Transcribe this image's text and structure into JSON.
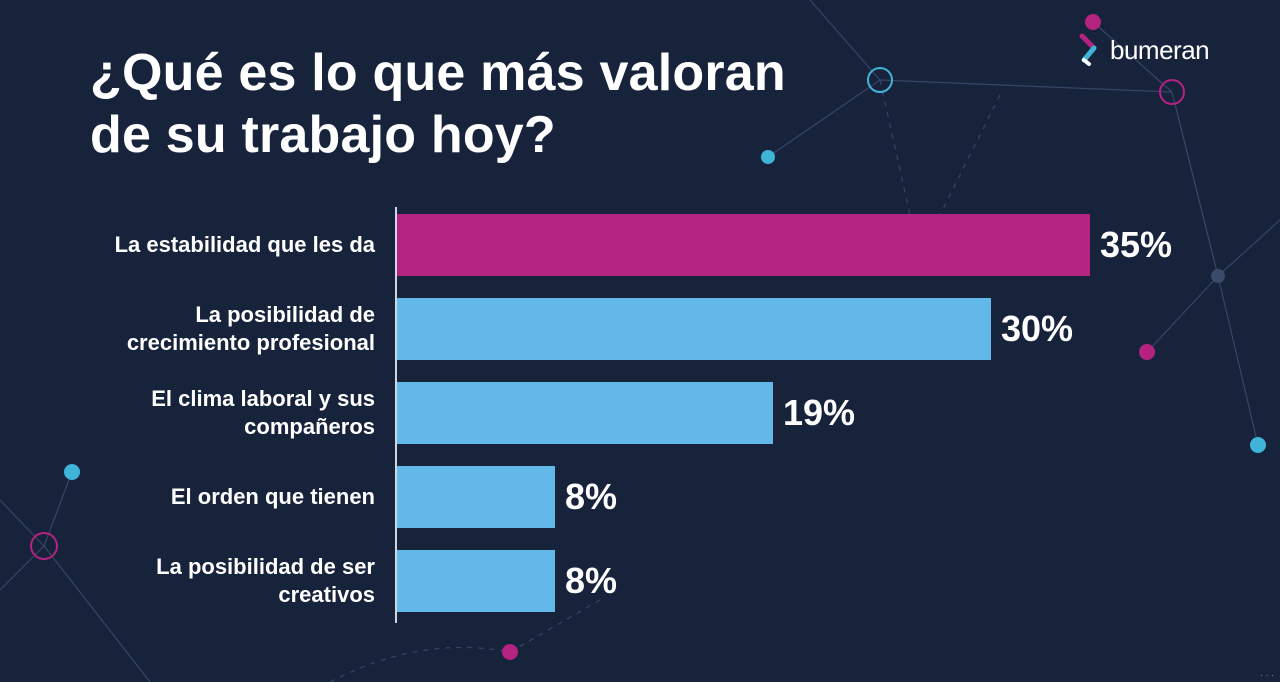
{
  "header": {
    "title_line1": "¿Qué es lo que más valoran",
    "title_line2": "de su trabajo hoy?",
    "brand_name": "bumeran",
    "brand_icon": "bumeran-logo-icon"
  },
  "colors": {
    "background": "#17223b",
    "highlight_bar": "#b3237f",
    "bar": "#62b8e8",
    "network_cyan": "#3fb4d8",
    "network_magenta": "#b3237f"
  },
  "chart_data": {
    "type": "bar",
    "orientation": "horizontal",
    "title": "¿Qué es lo que más valoran de su trabajo hoy?",
    "categories": [
      [
        "La estabilidad que les da"
      ],
      [
        "La posibilidad de",
        "crecimiento profesional"
      ],
      [
        "El clima laboral y sus",
        "compañeros"
      ],
      [
        "El orden que tienen"
      ],
      [
        "La posibilidad de ser",
        "creativos"
      ]
    ],
    "values": [
      35,
      30,
      19,
      8,
      8
    ],
    "value_labels": [
      "35%",
      "30%",
      "19%",
      "8%",
      "8%"
    ],
    "highlighted_index": 0,
    "xlim": [
      0,
      35
    ],
    "grid": false,
    "legend": "none"
  }
}
